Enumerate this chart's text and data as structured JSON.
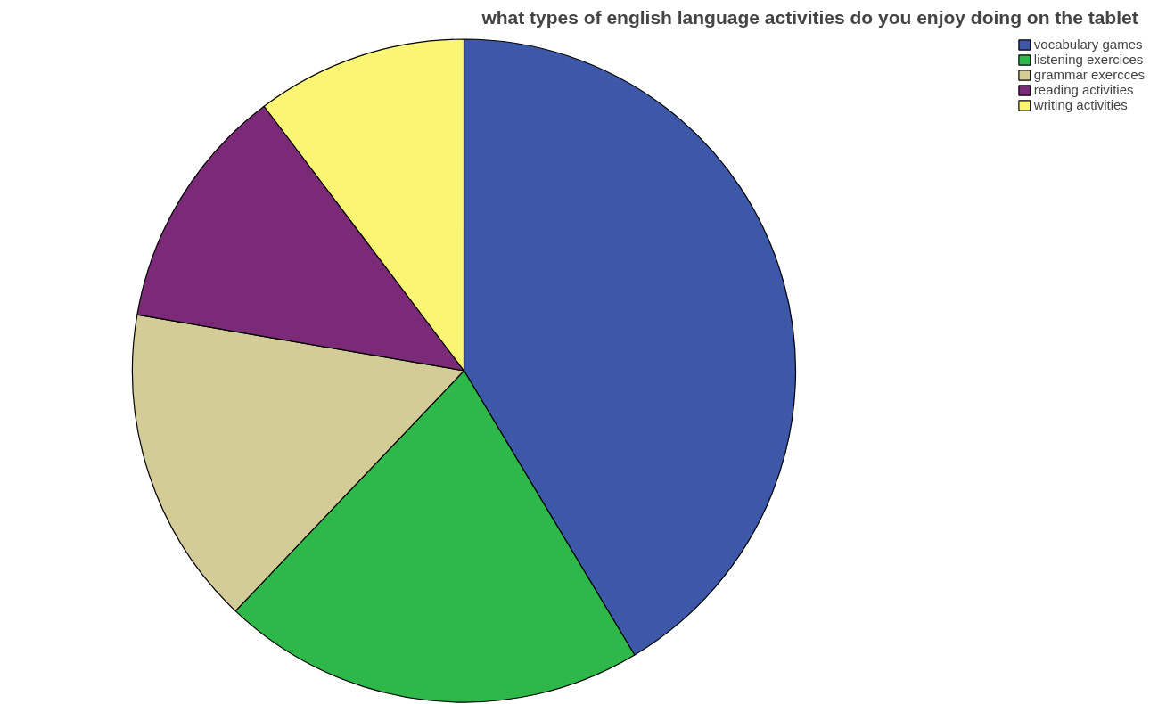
{
  "chart_data": {
    "type": "pie",
    "title": "what types of english language  activities do you enjoy doing on the tablet",
    "categories": [
      "vocabulary games",
      "listening exercices",
      "grammar exercces",
      "reading activities",
      "writing activities"
    ],
    "values": [
      41.4,
      20.7,
      15.6,
      12.0,
      10.3
    ],
    "colors": [
      "#3d58a8",
      "#2eb84a",
      "#d4cc97",
      "#7b2a78",
      "#fbf574"
    ],
    "legend": "top right"
  }
}
